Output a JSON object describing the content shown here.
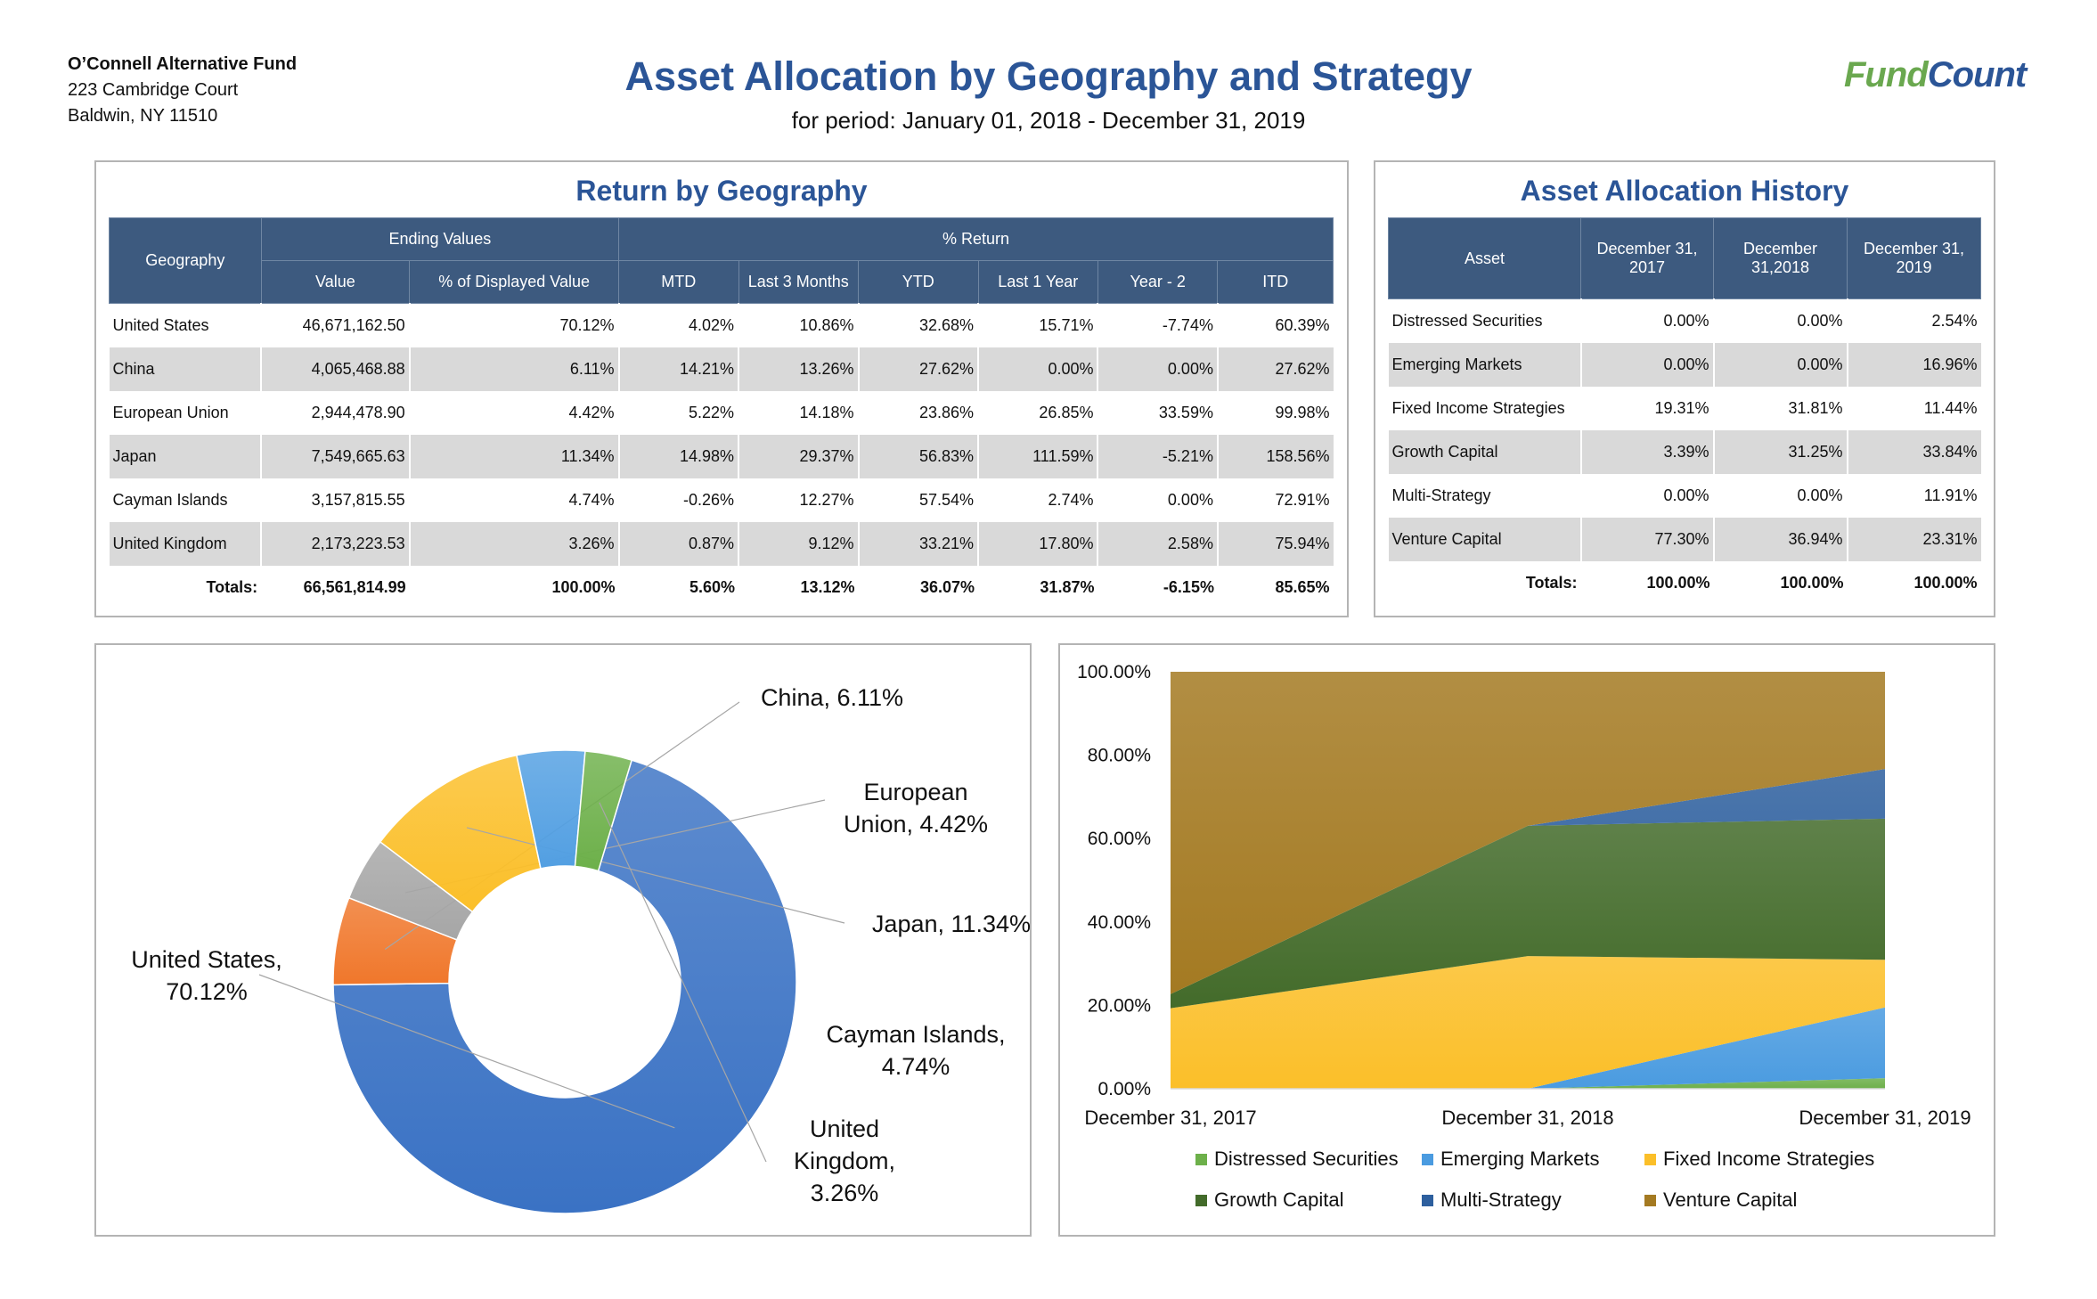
{
  "fund": {
    "name": "O’Connell Alternative Fund",
    "address1": "223 Cambridge Court",
    "address2": "Baldwin, NY 11510"
  },
  "title": "Asset Allocation by Geography and Strategy",
  "subtitle": "for period: January 01, 2018 - December 31, 2019",
  "logo": {
    "part1": "Fund",
    "part2": "Count",
    "color1": "#6aa84f",
    "color2": "#2b5597"
  },
  "geo_table": {
    "title": "Return by Geography",
    "group_headers": {
      "geography": "Geography",
      "ending_values": "Ending Values",
      "pct_return": "% Return"
    },
    "columns": [
      "Value",
      "% of Displayed Value",
      "MTD",
      "Last 3 Months",
      "YTD",
      "Last 1 Year",
      "Year - 2",
      "ITD"
    ],
    "rows": [
      {
        "name": "United States",
        "cells": [
          "46,671,162.50",
          "70.12%",
          "4.02%",
          "10.86%",
          "32.68%",
          "15.71%",
          "-7.74%",
          "60.39%"
        ]
      },
      {
        "name": "China",
        "cells": [
          "4,065,468.88",
          "6.11%",
          "14.21%",
          "13.26%",
          "27.62%",
          "0.00%",
          "0.00%",
          "27.62%"
        ]
      },
      {
        "name": "European Union",
        "cells": [
          "2,944,478.90",
          "4.42%",
          "5.22%",
          "14.18%",
          "23.86%",
          "26.85%",
          "33.59%",
          "99.98%"
        ]
      },
      {
        "name": "Japan",
        "cells": [
          "7,549,665.63",
          "11.34%",
          "14.98%",
          "29.37%",
          "56.83%",
          "111.59%",
          "-5.21%",
          "158.56%"
        ]
      },
      {
        "name": "Cayman Islands",
        "cells": [
          "3,157,815.55",
          "4.74%",
          "-0.26%",
          "12.27%",
          "57.54%",
          "2.74%",
          "0.00%",
          "72.91%"
        ]
      },
      {
        "name": "United Kingdom",
        "cells": [
          "2,173,223.53",
          "3.26%",
          "0.87%",
          "9.12%",
          "33.21%",
          "17.80%",
          "2.58%",
          "75.94%"
        ]
      }
    ],
    "totals": {
      "label": "Totals:",
      "cells": [
        "66,561,814.99",
        "100.00%",
        "5.60%",
        "13.12%",
        "36.07%",
        "31.87%",
        "-6.15%",
        "85.65%"
      ]
    }
  },
  "alloc_table": {
    "title": "Asset Allocation History",
    "asset_header": "Asset",
    "columns": [
      "December 31, 2017",
      "December 31,2018",
      "December 31, 2019"
    ],
    "rows": [
      {
        "name": "Distressed Securities",
        "cells": [
          "0.00%",
          "0.00%",
          "2.54%"
        ]
      },
      {
        "name": "Emerging Markets",
        "cells": [
          "0.00%",
          "0.00%",
          "16.96%"
        ]
      },
      {
        "name": "Fixed Income Strategies",
        "cells": [
          "19.31%",
          "31.81%",
          "11.44%"
        ]
      },
      {
        "name": "Growth Capital",
        "cells": [
          "3.39%",
          "31.25%",
          "33.84%"
        ]
      },
      {
        "name": "Multi-Strategy",
        "cells": [
          "0.00%",
          "0.00%",
          "11.91%"
        ]
      },
      {
        "name": "Venture Capital",
        "cells": [
          "77.30%",
          "36.94%",
          "23.31%"
        ]
      }
    ],
    "totals": {
      "label": "Totals:",
      "cells": [
        "100.00%",
        "100.00%",
        "100.00%"
      ]
    }
  },
  "chart_data": [
    {
      "type": "pie",
      "style": "donut",
      "slices": [
        {
          "label": "United States",
          "value": 70.12,
          "text": [
            "United States,",
            "70.12%"
          ],
          "color": "#3a72c4"
        },
        {
          "label": "China",
          "value": 6.11,
          "text": [
            "China, 6.11%"
          ],
          "color": "#f0772b"
        },
        {
          "label": "European Union",
          "value": 4.42,
          "text": [
            "European",
            "Union, 4.42%"
          ],
          "color": "#a6a6a6"
        },
        {
          "label": "Japan",
          "value": 11.34,
          "text": [
            "Japan, 11.34%"
          ],
          "color": "#fbbf29"
        },
        {
          "label": "Cayman Islands",
          "value": 4.74,
          "text": [
            "Cayman Islands,",
            "4.74%"
          ],
          "color": "#529fe2"
        },
        {
          "label": "United Kingdom",
          "value": 3.26,
          "text": [
            "United",
            "Kingdom,",
            "3.26%"
          ],
          "color": "#6db04a"
        }
      ]
    },
    {
      "type": "area",
      "stacked": "percent",
      "categories": [
        "December 31, 2017",
        "December 31, 2018",
        "December 31, 2019"
      ],
      "ylim": [
        0,
        100
      ],
      "y_ticks": [
        "0.00%",
        "20.00%",
        "40.00%",
        "60.00%",
        "80.00%",
        "100.00%"
      ],
      "legend_position": "bottom",
      "series": [
        {
          "name": "Distressed Securities",
          "values": [
            0.0,
            0.0,
            2.54
          ],
          "color": "#6db04a"
        },
        {
          "name": "Emerging Markets",
          "values": [
            0.0,
            0.0,
            16.96
          ],
          "color": "#4a9be0"
        },
        {
          "name": "Fixed Income Strategies",
          "values": [
            19.31,
            31.81,
            11.44
          ],
          "color": "#fbbf29"
        },
        {
          "name": "Growth Capital",
          "values": [
            3.39,
            31.25,
            33.84
          ],
          "color": "#436b2a"
        },
        {
          "name": "Multi-Strategy",
          "values": [
            0.0,
            0.0,
            11.91
          ],
          "color": "#2d5f9e"
        },
        {
          "name": "Venture Capital",
          "values": [
            77.3,
            36.94,
            23.31
          ],
          "color": "#a47a22"
        }
      ]
    }
  ]
}
